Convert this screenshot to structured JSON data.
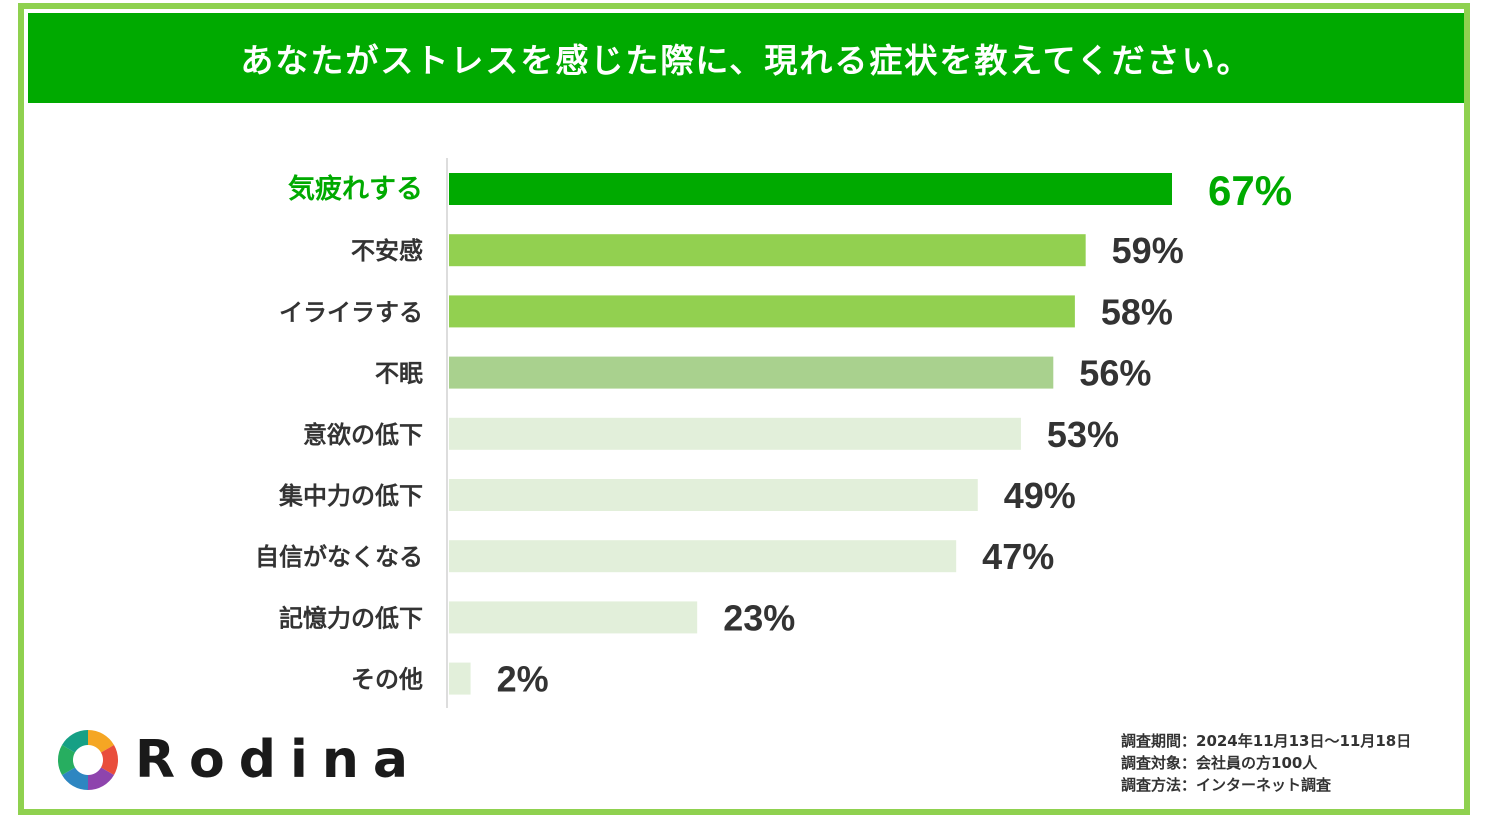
{
  "title": "あなたがストレスを感じた際に、現れる症状を教えてください。",
  "colors": {
    "title_bg": "#00aa00",
    "frame": "#8fd14f",
    "highlight": "#00aa00",
    "bar_1": "#00aa00",
    "bar_2": "#92d050",
    "bar_3": "#a9d18e",
    "bar_4": "#e2efda",
    "label_default": "#333333"
  },
  "chart_data": {
    "type": "bar",
    "orientation": "horizontal",
    "categories": [
      "気疲れする",
      "不安感",
      "イライラする",
      "不眠",
      "意欲の低下",
      "集中力の低下",
      "自信がなくなる",
      "記憶力の低下",
      "その他"
    ],
    "values": [
      67,
      59,
      58,
      56,
      53,
      49,
      47,
      23,
      2
    ],
    "value_labels": [
      "67%",
      "59%",
      "58%",
      "56%",
      "53%",
      "49%",
      "47%",
      "23%",
      "2%"
    ],
    "unit": "%",
    "xlim": [
      0,
      67
    ],
    "grid": false,
    "highlight_index": 0
  },
  "brand": {
    "name": "Rodina"
  },
  "survey": {
    "period": "調査期間：2024年11月13日～11月18日",
    "target": "調査対象：会社員の方100人",
    "method": "調査方法：インターネット調査"
  }
}
